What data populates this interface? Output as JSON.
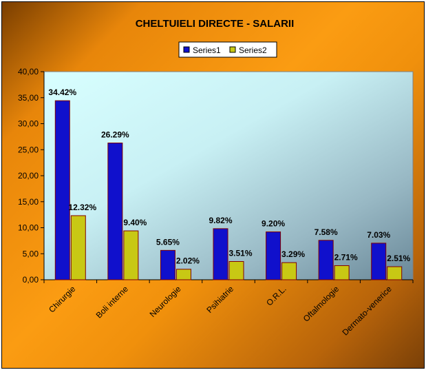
{
  "chart_data": {
    "type": "bar",
    "title": "CHELTUIELI DIRECTE - SALARII",
    "categories": [
      "Chirurgie",
      "Boli interne",
      "Neurologie",
      "Psihiatrie",
      "O.R.L.",
      "Oftalmologie",
      "Dermato-venerice"
    ],
    "series": [
      {
        "name": "Series1",
        "color": "#1010cc",
        "values": [
          34.42,
          26.29,
          5.65,
          9.82,
          9.2,
          7.58,
          7.03
        ],
        "labels": [
          "34.42%",
          "26.29%",
          "5.65%",
          "9.82%",
          "9.20%",
          "7.58%",
          "7.03%"
        ]
      },
      {
        "name": "Series2",
        "color": "#c8c814",
        "values": [
          12.32,
          9.4,
          2.02,
          3.51,
          3.29,
          2.71,
          2.51
        ],
        "labels": [
          "12.32%",
          "9.40%",
          "2.02%",
          "3.51%",
          "3.29%",
          "2.71%",
          "2.51%"
        ]
      }
    ],
    "ylim": [
      0,
      40
    ],
    "yticks": [
      "0,00",
      "5,00",
      "10,00",
      "15,00",
      "20,00",
      "25,00",
      "30,00",
      "35,00",
      "40,00"
    ],
    "xlabel": "",
    "ylabel": "",
    "grid": false,
    "legend_position": "top"
  }
}
